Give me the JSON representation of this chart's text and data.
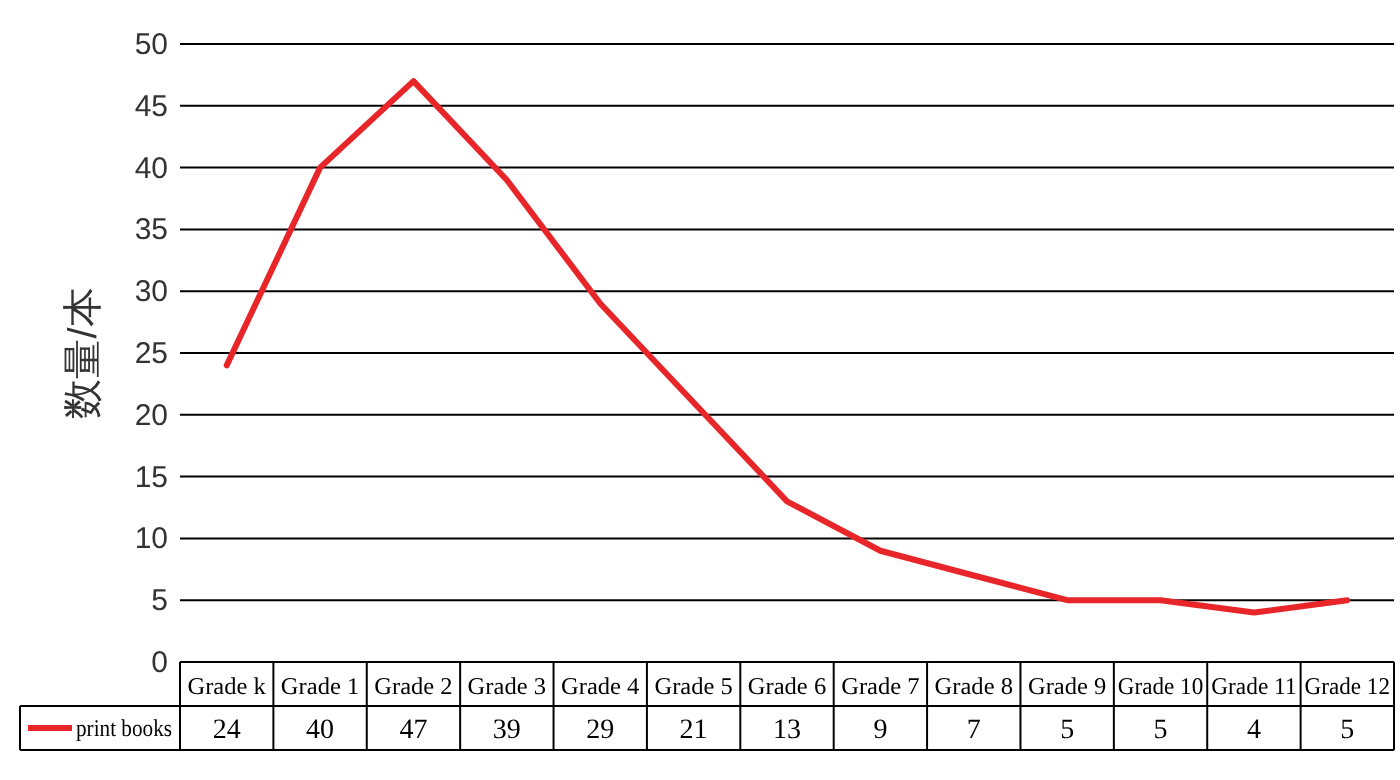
{
  "chart_data": {
    "type": "line",
    "ylabel": "数量/本",
    "categories": [
      "Grade k",
      "Grade 1",
      "Grade 2",
      "Grade 3",
      "Grade 4",
      "Grade 5",
      "Grade 6",
      "Grade 7",
      "Grade 8",
      "Grade 9",
      "Grade 10",
      "Grade 11",
      "Grade 12"
    ],
    "series": [
      {
        "name": "print books",
        "color": "#e8262a",
        "values": [
          24,
          40,
          47,
          39,
          29,
          21,
          13,
          9,
          7,
          5,
          5,
          4,
          5
        ]
      }
    ],
    "ylim": [
      0,
      50
    ],
    "yticks": [
      0,
      5,
      10,
      15,
      20,
      25,
      30,
      35,
      40,
      45,
      50
    ],
    "grid": "y",
    "legend": "bottom",
    "data_labels": true,
    "marker": "none",
    "line_style": "solid"
  }
}
